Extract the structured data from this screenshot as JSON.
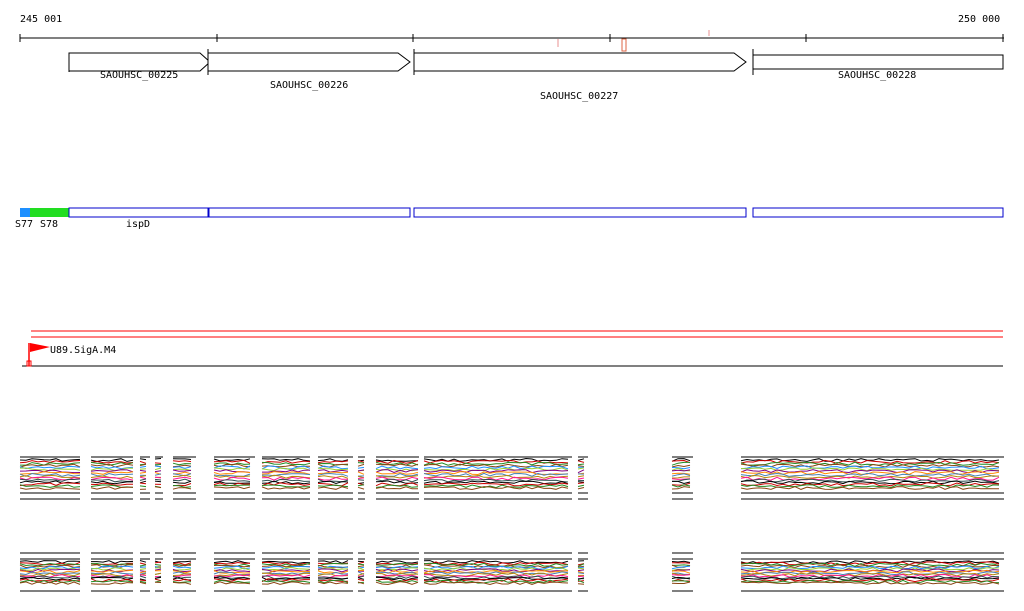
{
  "coordinates": {
    "start": "245 001",
    "end": "250 000"
  },
  "genes": [
    {
      "name": "SAOUHSC_00225"
    },
    {
      "name": "SAOUHSC_00226"
    },
    {
      "name": "SAOUHSC_00227"
    },
    {
      "name": "SAOUHSC_00228"
    }
  ],
  "transcripts": {
    "segments": [
      {
        "name": "S77",
        "color": "#1e90ff"
      },
      {
        "name": "S78",
        "color": "#22dd22"
      }
    ],
    "gene_label": "ispD",
    "box_color": "#0000cc"
  },
  "promoter": {
    "name": "U89.SigA.M4",
    "color": "#ff0000"
  },
  "expression_colors": [
    "#000000",
    "#cc0000",
    "#228b22",
    "#8b4513",
    "#1e90ff",
    "#9acd32",
    "#800080",
    "#ff8c00",
    "#4682b4",
    "#b8860b",
    "#ff1493",
    "#2f4f4f"
  ]
}
